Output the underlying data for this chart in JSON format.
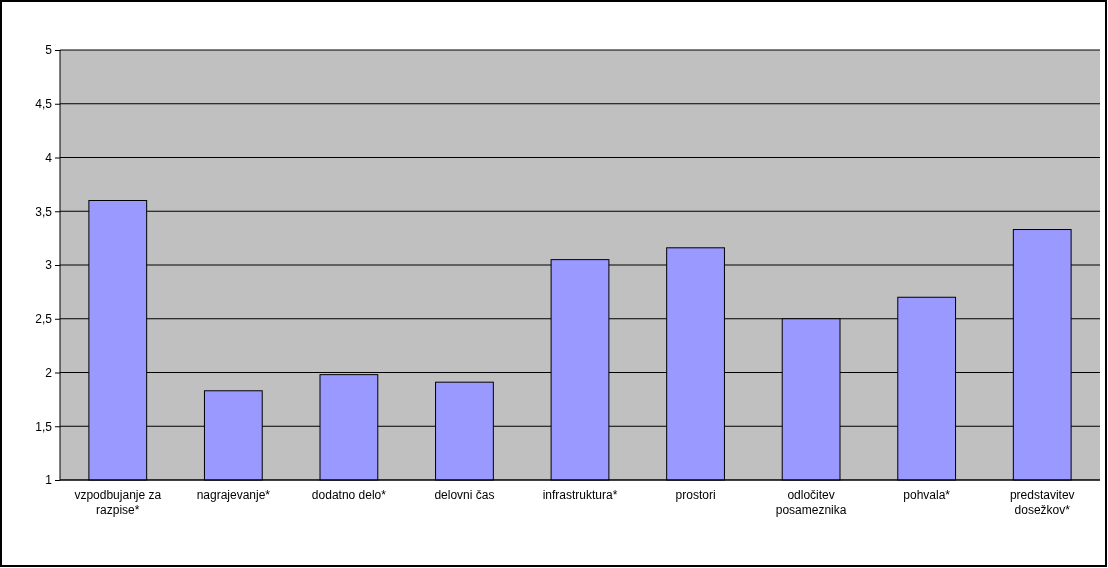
{
  "chart_data": {
    "type": "bar",
    "categories": [
      "vzpodbujanje za razpise*",
      "nagrajevanje*",
      "dodatno delo*",
      "delovni čas",
      "infrastruktura*",
      "prostori",
      "odločitev posameznika",
      "pohvala*",
      "predstavitev dosežkov*"
    ],
    "values": [
      3.6,
      1.83,
      1.98,
      1.91,
      3.05,
      3.16,
      2.5,
      2.7,
      3.33
    ],
    "color": "#9999ff",
    "ylim": [
      1,
      5
    ],
    "yticks": [
      1,
      {
        "value": 1.5,
        "label": "1,5"
      },
      2,
      {
        "value": 2.5,
        "label": "2,5"
      },
      3,
      {
        "value": 3.5,
        "label": "3,5"
      },
      4,
      {
        "value": 4.5,
        "label": "4,5"
      },
      5
    ],
    "grid": "y"
  }
}
